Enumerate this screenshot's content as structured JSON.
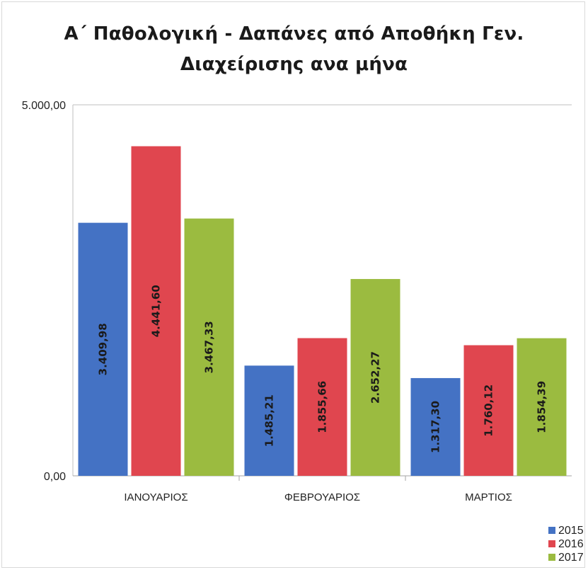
{
  "chart_data": {
    "type": "bar",
    "title": "Α΄ Παθολογική - Δαπάνες από Αποθήκη Γεν. Διαχείρισης ανα μήνα",
    "title_lines": [
      "Α΄ Παθολογική - Δαπάνες από Αποθήκη Γεν.",
      "Διαχείρισης ανα μήνα"
    ],
    "categories": [
      "ΙΑΝΟΥΑΡΙΟΣ",
      "ΦΕΒΡΟΥΑΡΙΟΣ",
      "ΜΑΡΤΙΟΣ"
    ],
    "series": [
      {
        "name": "2015",
        "color": "#4472c4",
        "values": [
          3409.98,
          1485.21,
          1317.3
        ],
        "labels": [
          "3.409,98",
          "1.485,21",
          "1.317,30"
        ]
      },
      {
        "name": "2016",
        "color": "#e0464f",
        "values": [
          4441.6,
          1855.66,
          1760.12
        ],
        "labels": [
          "4.441,60",
          "1.855,66",
          "1.760,12"
        ]
      },
      {
        "name": "2017",
        "color": "#9bbb40",
        "values": [
          3467.33,
          2652.27,
          1854.39
        ],
        "labels": [
          "3.467,33",
          "2.652,27",
          "1.854,39"
        ]
      }
    ],
    "ylim": [
      0,
      5000
    ],
    "yticks": [
      0,
      5000
    ],
    "ytick_labels": [
      "0,00",
      "5.000,00"
    ],
    "xlabel": "",
    "ylabel": "",
    "data_labels": "inside-rotated",
    "grid": false,
    "legend": "bottom-right"
  }
}
